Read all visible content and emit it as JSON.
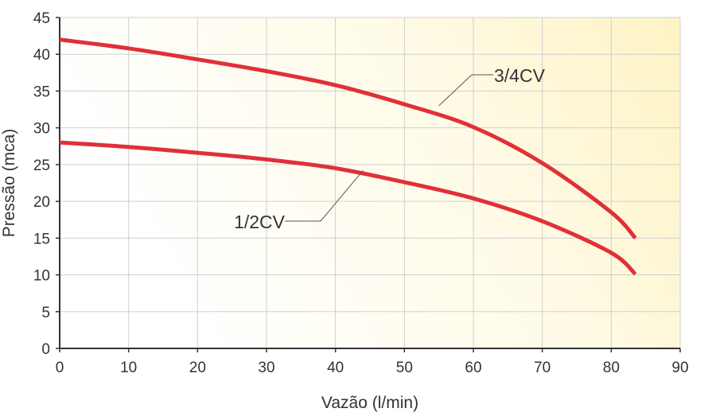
{
  "chart_data": {
    "type": "line",
    "title": "",
    "xlabel": "Vazão (l/min)",
    "ylabel": "Pressão (mca)",
    "xlim": [
      0,
      90
    ],
    "ylim": [
      0,
      45
    ],
    "xticks": [
      "0",
      "10",
      "20",
      "30",
      "40",
      "50",
      "60",
      "70",
      "80",
      "90"
    ],
    "yticks": [
      "0",
      "5",
      "10",
      "15",
      "20",
      "25",
      "30",
      "35",
      "40",
      "45"
    ],
    "grid": true,
    "series": [
      {
        "name": "3/4CV",
        "color": "#e03038",
        "x": [
          0,
          10,
          20,
          30,
          40,
          50,
          60,
          70,
          80,
          83.5
        ],
        "y": [
          42,
          40.8,
          39.3,
          37.7,
          35.8,
          33.2,
          30.1,
          25.2,
          18.5,
          15
        ]
      },
      {
        "name": "1/2CV",
        "color": "#e03038",
        "x": [
          0,
          10,
          20,
          30,
          40,
          50,
          60,
          70,
          80,
          83.5
        ],
        "y": [
          28,
          27.4,
          26.6,
          25.7,
          24.5,
          22.6,
          20.4,
          17.3,
          13,
          10.1
        ]
      }
    ],
    "annotations": [
      {
        "text": "3/4CV",
        "points_to": [
          55,
          33
        ]
      },
      {
        "text": "1/2CV",
        "points_to": [
          44,
          24.2
        ]
      }
    ]
  }
}
